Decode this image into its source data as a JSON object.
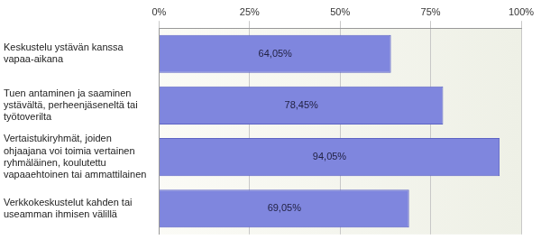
{
  "chart_data": {
    "type": "bar",
    "orientation": "horizontal",
    "categories": [
      "Keskustelu ystävän kanssa vapaa-aikana",
      "Tuen antaminen ja saaminen ystävältä, perheenjäseneltä tai työtoverilta",
      "Vertaistukiryhmät, joiden ohjaajana voi toimia vertainen ryhmäläinen, koulutettu vapaaehtoinen tai ammattilainen",
      "Verkkokeskustelut kahden tai useamman ihmisen välillä"
    ],
    "values": [
      64.05,
      78.45,
      94.05,
      69.05
    ],
    "value_labels": [
      "64,05%",
      "78,45%",
      "94,05%",
      "69,05%"
    ],
    "data_labels": true,
    "color": "#7f86de",
    "xlim": [
      0,
      100
    ],
    "xticks": [
      {
        "value": 0,
        "label": "0%"
      },
      {
        "value": 25,
        "label": "25%"
      },
      {
        "value": 50,
        "label": "50%"
      },
      {
        "value": 75,
        "label": "75%"
      },
      {
        "value": 100,
        "label": "100%"
      }
    ],
    "grid": true
  }
}
